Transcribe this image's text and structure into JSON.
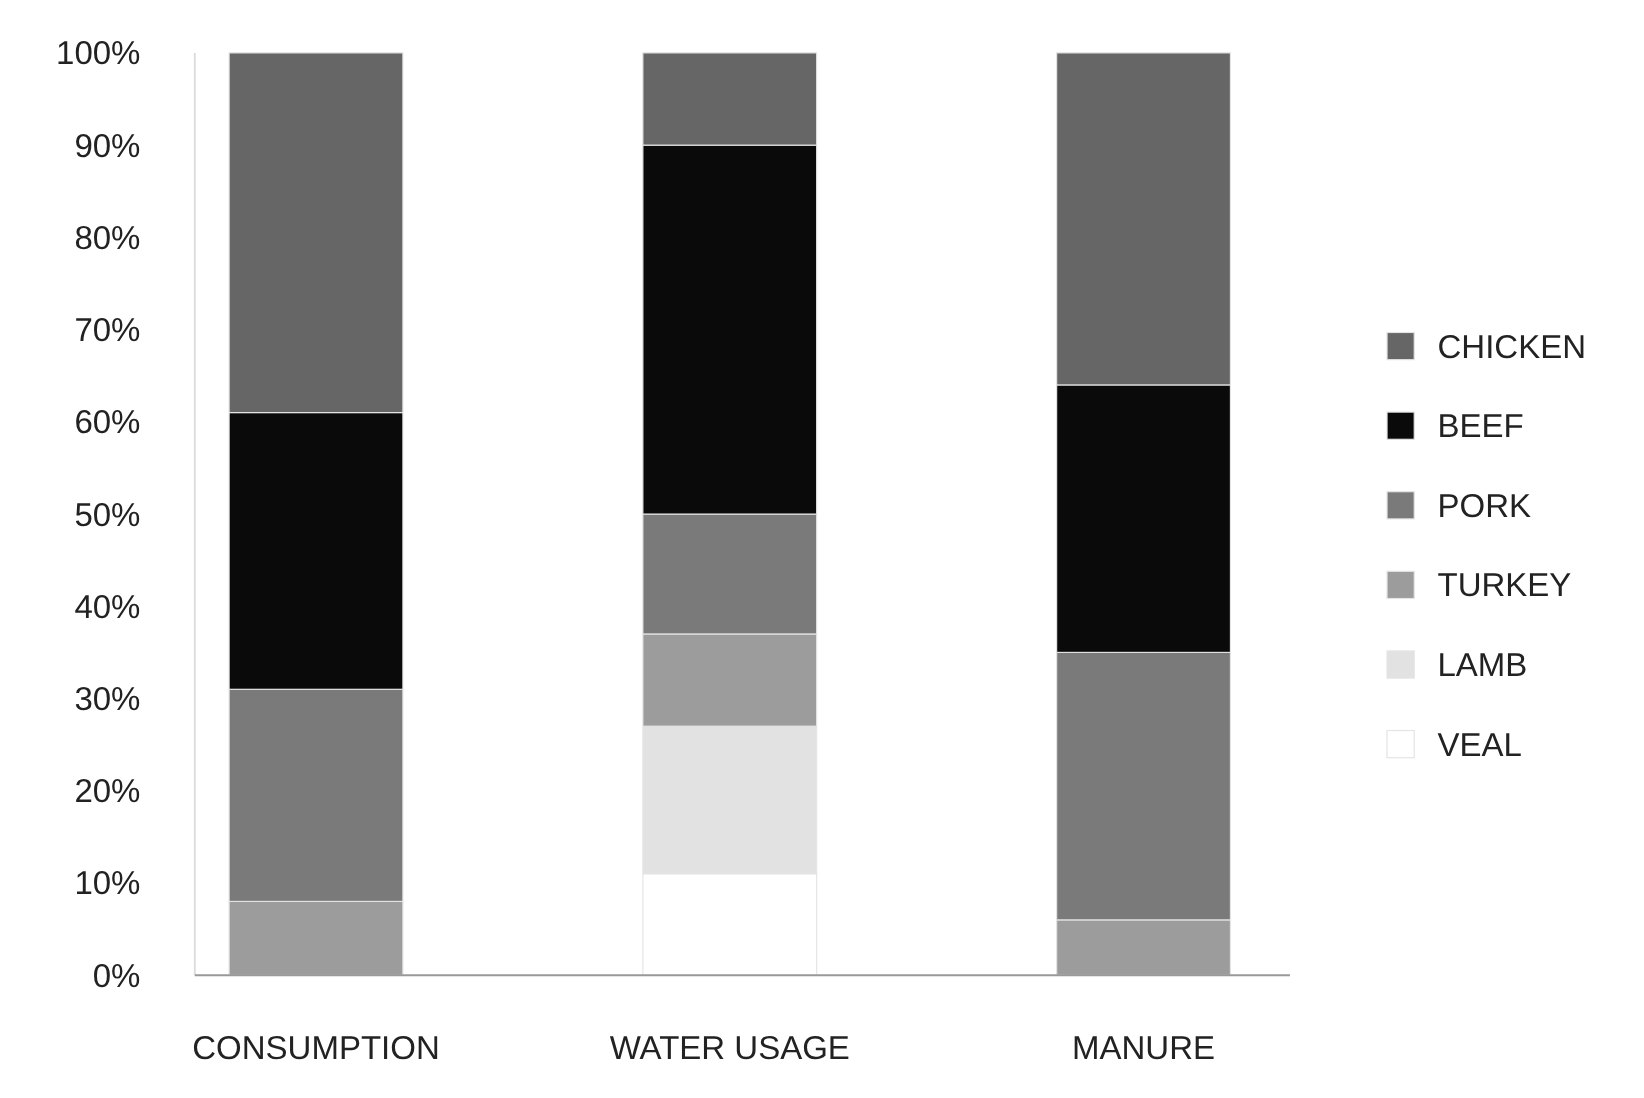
{
  "chart_data": {
    "type": "bar",
    "stacked": true,
    "categories": [
      "CONSUMPTION",
      "WATER USAGE",
      "MANURE"
    ],
    "series": [
      {
        "name": "VEAL",
        "color": "#ffffff",
        "values": [
          0,
          11,
          0
        ]
      },
      {
        "name": "LAMB",
        "color": "#e2e2e2",
        "values": [
          0,
          16,
          0
        ]
      },
      {
        "name": "TURKEY",
        "color": "#9c9c9c",
        "values": [
          8,
          10,
          6
        ]
      },
      {
        "name": "PORK",
        "color": "#7a7a7a",
        "values": [
          23,
          13,
          29
        ]
      },
      {
        "name": "BEEF",
        "color": "#0a0a0a",
        "values": [
          30,
          40,
          29
        ]
      },
      {
        "name": "CHICKEN",
        "color": "#666666",
        "values": [
          39,
          10,
          36
        ]
      }
    ],
    "ylim": [
      0,
      100
    ],
    "yticks": [
      {
        "value": 0,
        "label": "0%"
      },
      {
        "value": 10,
        "label": "10%"
      },
      {
        "value": 20,
        "label": "20%"
      },
      {
        "value": 30,
        "label": "30%"
      },
      {
        "value": 40,
        "label": "40%"
      },
      {
        "value": 50,
        "label": "50%"
      },
      {
        "value": 60,
        "label": "60%"
      },
      {
        "value": 70,
        "label": "70%"
      },
      {
        "value": 80,
        "label": "80%"
      },
      {
        "value": 90,
        "label": "90%"
      },
      {
        "value": 100,
        "label": "100%"
      }
    ],
    "legend": "right",
    "grid": false
  }
}
